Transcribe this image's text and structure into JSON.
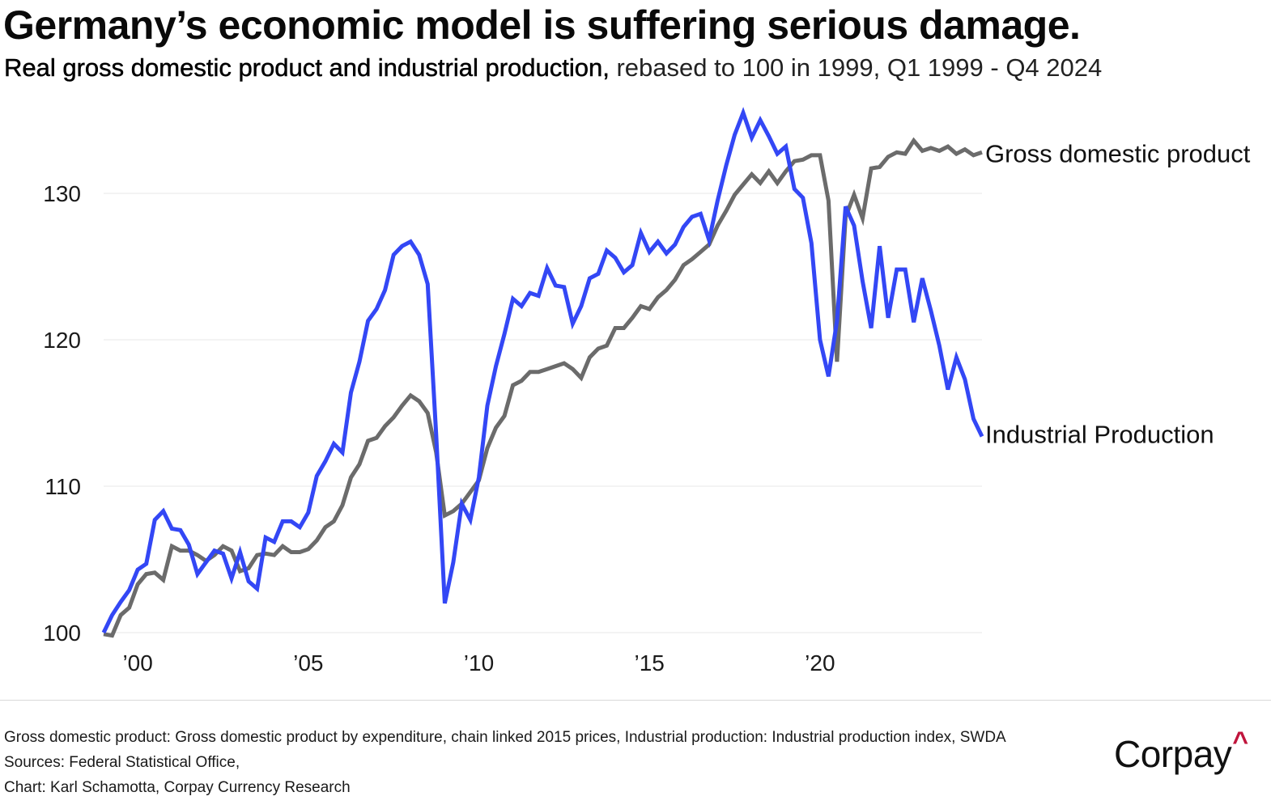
{
  "header": {
    "title": "Germany’s economic model is suffering serious damage.",
    "subtitle_strong": "Real gross domestic product and industrial production,",
    "subtitle_rest": " rebased to 100 in 1999, Q1 1999 - Q4 2024"
  },
  "footer": {
    "notes": [
      "Gross domestic product: Gross domestic product by expenditure, chain linked 2015 prices, Industrial production: Industrial production index, SWDA",
      "Sources: Federal Statistical Office,",
      "Chart: Karl Schamotta, Corpay Currency Research"
    ],
    "logo_text": "Corpay",
    "logo_mark": "^",
    "logo_mark_color": "#c0143c"
  },
  "chart_data": {
    "type": "line",
    "title": "Germany’s economic model is suffering serious damage.",
    "subtitle": "Real gross domestic product and industrial production, rebased to 100 in 1999, Q1 1999 - Q4 2024",
    "xlabel": "",
    "ylabel": "",
    "x_start": "Q1 1999",
    "x_end": "Q4 2024",
    "frequency": "quarterly",
    "xlim": [
      1999.0,
      2024.75
    ],
    "ylim": [
      100,
      136
    ],
    "yticks": [
      100,
      110,
      120,
      130
    ],
    "ytick_labels": [
      "100",
      "110",
      "120",
      "130"
    ],
    "xticks": [
      2000,
      2005,
      2010,
      2015,
      2020
    ],
    "xtick_labels": [
      "’00",
      "’05",
      "’10",
      "’15",
      "’20"
    ],
    "grid": "horizontal",
    "legend": "direct-labels-right",
    "series": [
      {
        "name": "Gross domestic product",
        "label": "Gross domestic product",
        "color": "#6b6b6b",
        "values": [
          99.9,
          99.8,
          101.2,
          101.7,
          103.3,
          104.0,
          104.1,
          103.6,
          105.9,
          105.6,
          105.6,
          105.3,
          104.9,
          105.3,
          105.9,
          105.6,
          104.2,
          104.4,
          105.3,
          105.4,
          105.3,
          105.9,
          105.5,
          105.5,
          105.7,
          106.3,
          107.2,
          107.6,
          108.7,
          110.6,
          111.5,
          113.1,
          113.3,
          114.1,
          114.7,
          115.5,
          116.2,
          115.8,
          115.0,
          112.3,
          108.0,
          108.3,
          108.8,
          109.6,
          110.4,
          112.6,
          114.0,
          114.8,
          116.9,
          117.2,
          117.8,
          117.8,
          118.0,
          118.2,
          118.4,
          118.0,
          117.4,
          118.8,
          119.4,
          119.6,
          120.8,
          120.8,
          121.5,
          122.3,
          122.1,
          122.9,
          123.4,
          124.1,
          125.1,
          125.5,
          126.0,
          126.5,
          127.8,
          128.8,
          129.9,
          130.6,
          131.3,
          130.7,
          131.5,
          130.7,
          131.5,
          132.2,
          132.3,
          132.6,
          132.6,
          129.5,
          118.5,
          128.4,
          129.9,
          128.3,
          131.7,
          131.8,
          132.5,
          132.8,
          132.7,
          133.6,
          132.9,
          133.1,
          132.9,
          133.2,
          132.7,
          133.0,
          132.6,
          132.8
        ]
      },
      {
        "name": "Industrial Production",
        "label": "Industrial Production",
        "color": "#3347f5",
        "values": [
          100.0,
          101.2,
          102.1,
          102.9,
          104.3,
          104.7,
          107.7,
          108.3,
          107.1,
          107.0,
          106.0,
          104.0,
          104.8,
          105.6,
          105.4,
          103.7,
          105.5,
          103.5,
          103.0,
          106.5,
          106.2,
          107.6,
          107.6,
          107.2,
          108.2,
          110.7,
          111.7,
          112.9,
          112.3,
          116.4,
          118.5,
          121.3,
          122.1,
          123.4,
          125.8,
          126.4,
          126.7,
          125.8,
          123.8,
          113.5,
          102.0,
          104.8,
          108.8,
          107.7,
          110.6,
          115.5,
          118.2,
          120.4,
          122.8,
          122.3,
          123.2,
          123.0,
          124.9,
          123.7,
          123.6,
          121.1,
          122.3,
          124.2,
          124.5,
          126.1,
          125.6,
          124.6,
          125.1,
          127.3,
          126.0,
          126.7,
          125.9,
          126.5,
          127.7,
          128.4,
          128.6,
          126.8,
          129.5,
          131.9,
          134.0,
          135.5,
          133.8,
          135.0,
          133.9,
          132.7,
          133.2,
          130.3,
          129.7,
          126.6,
          120.0,
          117.5,
          121.3,
          129.1,
          127.8,
          124.0,
          120.8,
          126.4,
          121.5,
          124.8,
          124.8,
          121.2,
          124.2,
          122.0,
          119.6,
          116.6,
          118.8,
          117.3,
          114.6,
          113.4
        ]
      }
    ]
  }
}
